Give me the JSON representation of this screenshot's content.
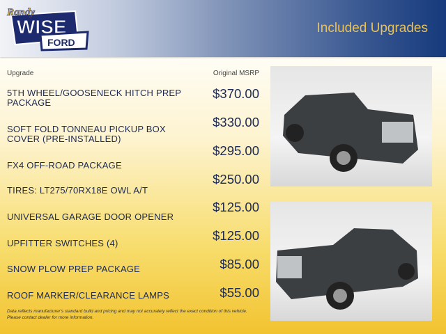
{
  "header": {
    "logo_text": "Randy WISE FORD",
    "title": "Included Upgrades"
  },
  "columns": {
    "upgrade": "Upgrade",
    "msrp": "Original MSRP"
  },
  "upgrades": [
    {
      "name": "5TH WHEEL/GOOSENECK HITCH PREP PACKAGE",
      "price": "$370.00"
    },
    {
      "name": "SOFT FOLD TONNEAU PICKUP BOX COVER (PRE-INSTALLED)",
      "price": "$330.00"
    },
    {
      "name": "FX4 OFF-ROAD PACKAGE",
      "price": "$295.00"
    },
    {
      "name": "TIRES: LT275/70RX18E OWL A/T",
      "price": "$250.00"
    },
    {
      "name": "UNIVERSAL GARAGE DOOR OPENER",
      "price": "$125.00"
    },
    {
      "name": "UPFITTER SWITCHES (4)",
      "price": "$125.00"
    },
    {
      "name": "SNOW PLOW PREP PACKAGE",
      "price": "$85.00"
    },
    {
      "name": "ROOF MARKER/CLEARANCE LAMPS",
      "price": "$55.00"
    }
  ],
  "disclaimer": "Data reflects manufacturer's standard build and pricing and may not accurately reflect the exact condition of this vehicle. Please contact dealer for more information.",
  "colors": {
    "header_navy": "#163a7c",
    "title_gold": "#e8c25a",
    "text_navy": "#1d2a55",
    "bottom_yellow": "#f2c330"
  }
}
